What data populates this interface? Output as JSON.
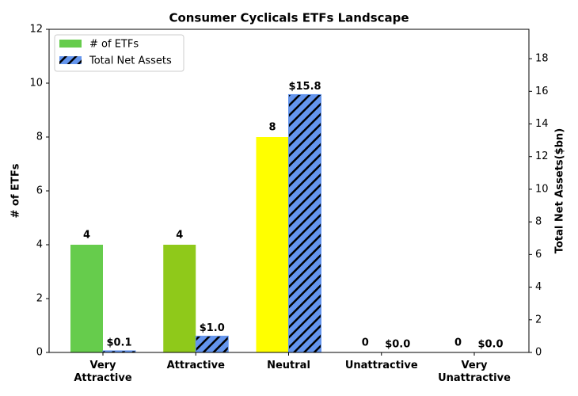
{
  "chart_data": {
    "type": "bar",
    "title": "Consumer Cyclicals ETFs Landscape",
    "categories": [
      "Very\nAttractive",
      "Attractive",
      "Neutral",
      "Unattractive",
      "Very\nUnattractive"
    ],
    "series": [
      {
        "name": "# of ETFs",
        "color": "#66cc4c",
        "colors": [
          "#66cc4c",
          "#8fc91a",
          "#ffff00",
          "#ff9900",
          "#ff3300"
        ],
        "values": [
          4,
          4,
          8,
          0,
          0
        ]
      },
      {
        "name": "Total Net Assets",
        "color": "#6495ed",
        "hatch": "#000000",
        "axis": "y2",
        "values": [
          0.1,
          1.0,
          15.8,
          0.0,
          0.0
        ],
        "value_labels": [
          "$0.1",
          "$1.0",
          "$15.8",
          "$0.0",
          "$0.0"
        ]
      }
    ],
    "ylabel": "# of ETFs",
    "y2label": "Total Net Assets($bn)",
    "ylim": [
      0,
      12
    ],
    "yticks": [
      0,
      2,
      4,
      6,
      8,
      10,
      12
    ],
    "y2lim": [
      0,
      19.8
    ],
    "y2ticks": [
      0,
      2,
      4,
      6,
      8,
      10,
      12,
      14,
      16,
      18
    ],
    "legend": "upper left"
  }
}
